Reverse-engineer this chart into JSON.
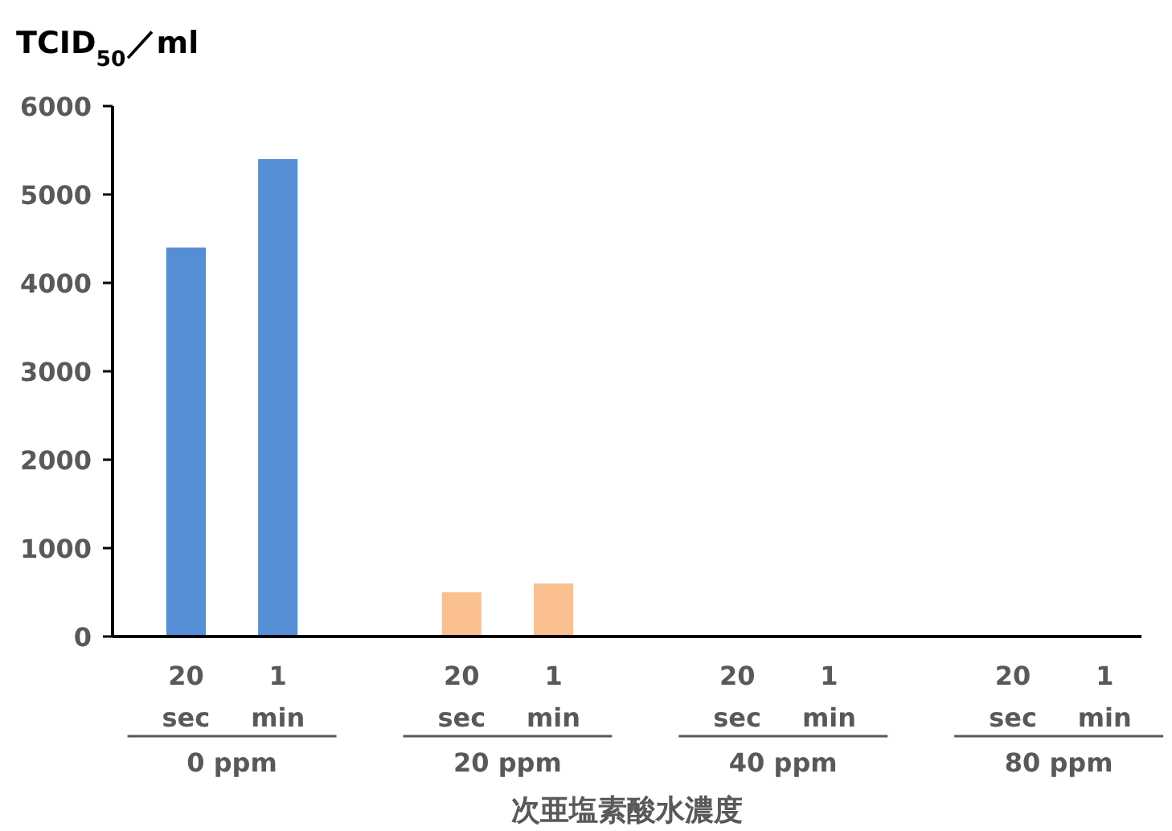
{
  "chart_data": {
    "type": "bar",
    "title": "TCID$_{50}$／ml",
    "xlabel": "次亜塩素酸水濃度",
    "categories": [
      "20 sec",
      "1 min",
      "20 sec",
      "1 min",
      "20 sec",
      "1 min",
      "20 sec",
      "1 min"
    ],
    "values": [
      4400,
      5400,
      500,
      600,
      0,
      0,
      0,
      0
    ],
    "colors": [
      "#558ed5",
      "#558ed5",
      "#fac090",
      "#fac090",
      "#fac090",
      "#fac090",
      "#fac090",
      "#fac090"
    ],
    "annotations": [
      "0 ppm",
      "20 ppm",
      "40 ppm",
      "80 ppm"
    ],
    "ylim": [
      0,
      6000
    ],
    "yticks": [
      0,
      1000,
      2000,
      3000,
      4000,
      5000,
      6000
    ],
    "grid": false
  }
}
